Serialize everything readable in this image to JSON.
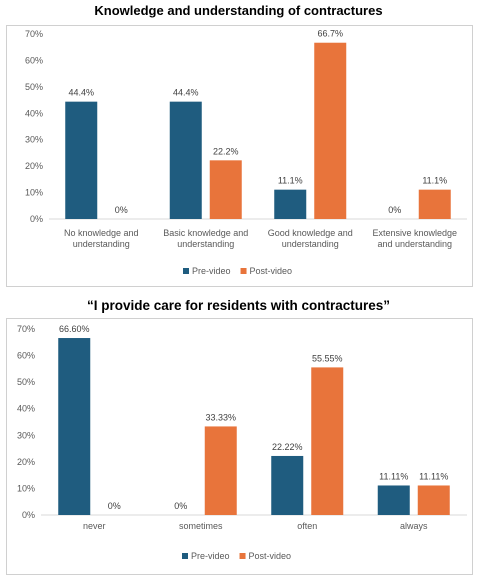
{
  "colors": {
    "pre": "#1F5C7F",
    "post": "#E8743B",
    "axis": "#d9d9d9",
    "text": "#595959"
  },
  "chart_data": [
    {
      "type": "bar",
      "title": "Knowledge and understanding of contractures",
      "categories": [
        [
          "No knowledge and",
          "understanding"
        ],
        [
          "Basic knowledge and",
          "understanding"
        ],
        [
          "Good knowledge and",
          "understanding"
        ],
        [
          "Extensive knowledge",
          "and understanding"
        ]
      ],
      "series": [
        {
          "name": "Pre-video",
          "values": [
            44.4,
            44.4,
            11.1,
            0
          ],
          "labels": [
            "44.4%",
            "44.4%",
            "11.1%",
            "0%"
          ]
        },
        {
          "name": "Post-video",
          "values": [
            0,
            22.2,
            66.7,
            11.1
          ],
          "labels": [
            "0%",
            "22.2%",
            "66.7%",
            "11.1%"
          ]
        }
      ],
      "yticks": [
        "0%",
        "10%",
        "20%",
        "30%",
        "40%",
        "50%",
        "60%",
        "70%"
      ],
      "ylim": [
        0,
        70
      ],
      "grid": false,
      "legend": "bottom"
    },
    {
      "type": "bar",
      "title": "“I provide care for residents with contractures”",
      "categories": [
        [
          "never"
        ],
        [
          "sometimes"
        ],
        [
          "often"
        ],
        [
          "always"
        ]
      ],
      "series": [
        {
          "name": "Pre-video",
          "values": [
            66.6,
            0,
            22.22,
            11.11
          ],
          "labels": [
            "66.60%",
            "0%",
            "22.22%",
            "11.11%"
          ]
        },
        {
          "name": "Post-video",
          "values": [
            0,
            33.33,
            55.55,
            11.11
          ],
          "labels": [
            "0%",
            "33.33%",
            "55.55%",
            "11.11%"
          ]
        }
      ],
      "yticks": [
        "0%",
        "10%",
        "20%",
        "30%",
        "40%",
        "50%",
        "60%",
        "70%"
      ],
      "ylim": [
        0,
        70
      ],
      "grid": false,
      "legend": "bottom"
    }
  ]
}
